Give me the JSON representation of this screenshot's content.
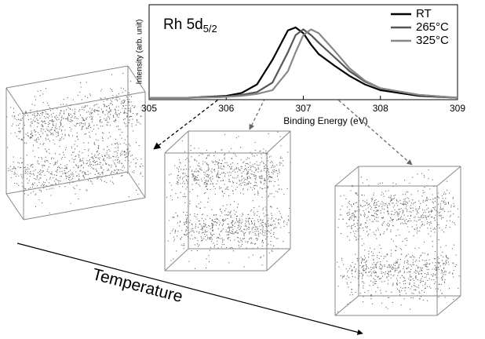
{
  "chart_data": {
    "type": "line",
    "title": "Rh 5d",
    "title_subscript": "5/2",
    "x_label": "Binding Energy (eV)",
    "y_label": "Intensity (arb. unit)",
    "x": [
      305,
      305.5,
      306,
      306.2,
      306.4,
      306.6,
      306.8,
      306.9,
      307,
      307.1,
      307.2,
      307.4,
      307.6,
      307.8,
      308,
      308.5,
      309
    ],
    "series": [
      {
        "name": "RT",
        "color": "#000000",
        "values": [
          0.02,
          0.02,
          0.04,
          0.07,
          0.16,
          0.42,
          0.73,
          0.76,
          0.7,
          0.58,
          0.48,
          0.36,
          0.25,
          0.16,
          0.1,
          0.04,
          0.02
        ]
      },
      {
        "name": "265°C",
        "color": "#555555",
        "values": [
          0.02,
          0.02,
          0.03,
          0.05,
          0.08,
          0.18,
          0.5,
          0.68,
          0.74,
          0.68,
          0.6,
          0.45,
          0.3,
          0.19,
          0.12,
          0.05,
          0.02
        ]
      },
      {
        "name": "325°C",
        "color": "#888888",
        "values": [
          0.02,
          0.02,
          0.03,
          0.04,
          0.06,
          0.1,
          0.3,
          0.5,
          0.68,
          0.74,
          0.7,
          0.52,
          0.33,
          0.2,
          0.12,
          0.05,
          0.02
        ]
      }
    ],
    "xlim": [
      305,
      309
    ],
    "xticks": [
      305,
      306,
      307,
      308,
      309
    ],
    "ylim": [
      0,
      1
    ],
    "legend": "top-right"
  },
  "annotation": "Temperature"
}
